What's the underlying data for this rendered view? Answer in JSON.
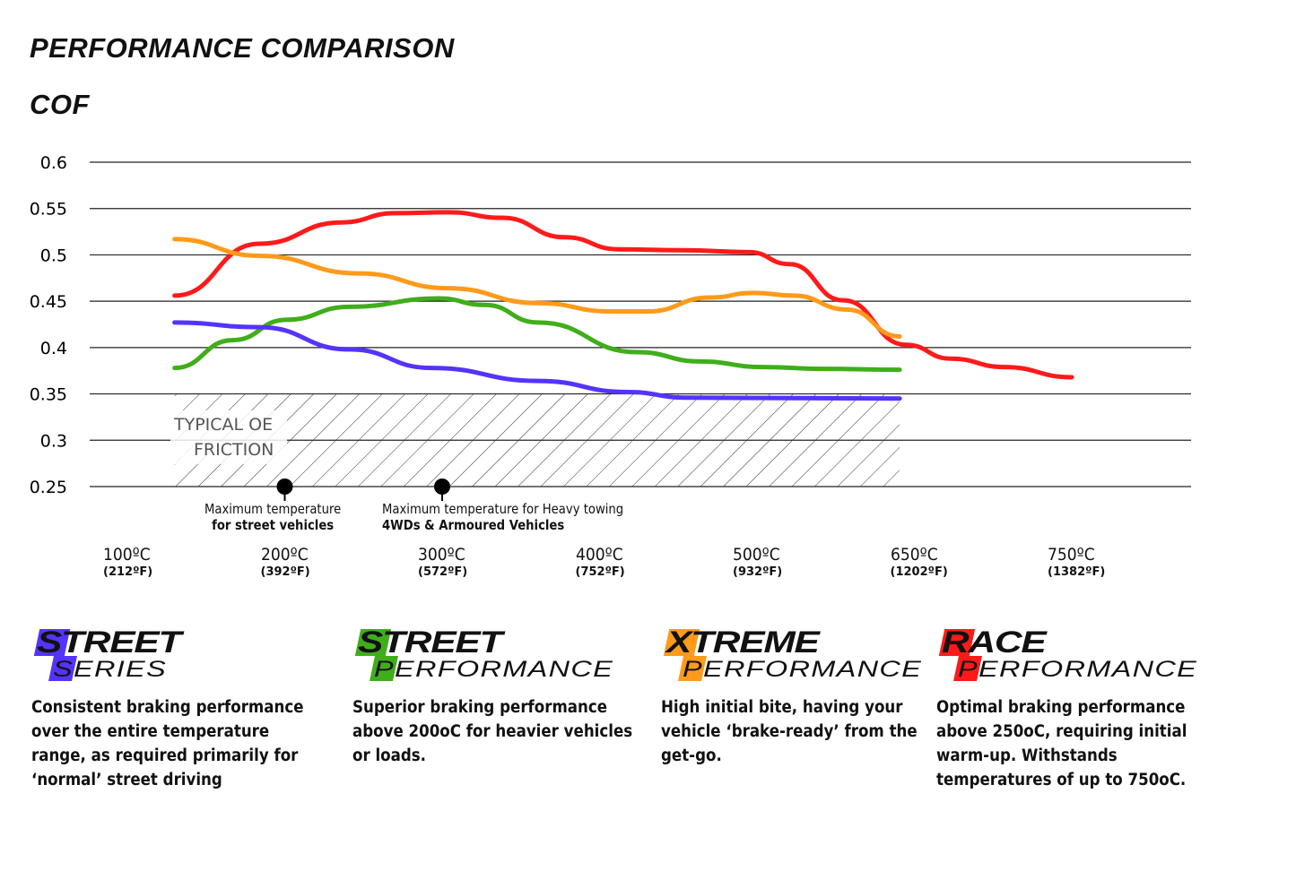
{
  "header": {
    "title": "PERFORMANCE COMPARISON",
    "subtitle": "COF"
  },
  "chart_data": {
    "type": "line",
    "ylabel": "COF",
    "ylim": [
      0.25,
      0.6
    ],
    "yticks": [
      "0.6",
      "0.55",
      "0.5",
      "0.45",
      "0.4",
      "0.35",
      "0.3",
      "0.25"
    ],
    "grid": true,
    "xticks": [
      {
        "c": "100ºC",
        "f": "(212ºF)",
        "t": 100
      },
      {
        "c": "200ºC",
        "f": "(392ºF)",
        "t": 200
      },
      {
        "c": "300ºC",
        "f": "(572ºF)",
        "t": 300
      },
      {
        "c": "400ºC",
        "f": "(752ºF)",
        "t": 400
      },
      {
        "c": "500ºC",
        "f": "(932ºF)",
        "t": 500
      },
      {
        "c": "650ºC",
        "f": "(1202ºF)",
        "t": 650
      },
      {
        "c": "750ºC",
        "f": "(1382ºF)",
        "t": 750
      }
    ],
    "series": [
      {
        "color": "#ff1a1a",
        "points": [
          [
            130,
            0.456
          ],
          [
            184,
            0.512
          ],
          [
            236,
            0.535
          ],
          [
            270,
            0.545
          ],
          [
            304,
            0.546
          ],
          [
            338,
            0.54
          ],
          [
            378,
            0.519
          ],
          [
            412,
            0.506
          ],
          [
            452,
            0.505
          ],
          [
            495,
            0.503
          ],
          [
            531,
            0.49
          ],
          [
            582,
            0.451
          ],
          [
            642,
            0.403
          ],
          [
            673,
            0.388
          ],
          [
            707,
            0.379
          ],
          [
            750,
            0.368
          ]
        ]
      },
      {
        "color": "#ff9a1a",
        "points": [
          [
            130,
            0.517
          ],
          [
            184,
            0.499
          ],
          [
            247,
            0.48
          ],
          [
            304,
            0.464
          ],
          [
            361,
            0.448
          ],
          [
            407,
            0.439
          ],
          [
            431,
            0.439
          ],
          [
            470,
            0.454
          ],
          [
            498,
            0.459
          ],
          [
            535,
            0.456
          ],
          [
            586,
            0.441
          ],
          [
            636,
            0.412
          ]
        ]
      },
      {
        "color": "#3fae1a",
        "points": [
          [
            130,
            0.378
          ],
          [
            167,
            0.408
          ],
          [
            201,
            0.43
          ],
          [
            241,
            0.444
          ],
          [
            298,
            0.453
          ],
          [
            327,
            0.446
          ],
          [
            361,
            0.427
          ],
          [
            424,
            0.395
          ],
          [
            464,
            0.385
          ],
          [
            505,
            0.379
          ],
          [
            565,
            0.377
          ],
          [
            636,
            0.376
          ]
        ]
      },
      {
        "color": "#5533ff",
        "points": [
          [
            130,
            0.427
          ],
          [
            184,
            0.422
          ],
          [
            241,
            0.398
          ],
          [
            293,
            0.378
          ],
          [
            361,
            0.364
          ],
          [
            418,
            0.352
          ],
          [
            455,
            0.346
          ],
          [
            636,
            0.345
          ]
        ]
      }
    ],
    "shaded_region": {
      "label_line1": "TYPICAL OE",
      "label_line2": "FRICTION",
      "x": [
        130,
        636
      ],
      "y": [
        0.25,
        0.35
      ]
    },
    "annotations": [
      {
        "t": 200,
        "line1": "Maximum temperature",
        "line2": "for street vehicles"
      },
      {
        "t": 300,
        "line1": "Maximum temperature for Heavy towing",
        "line2": "4WDs & Armoured Vehicles"
      }
    ]
  },
  "products": [
    {
      "l1": "STREET",
      "l2": "SERIES",
      "color": "#5533ff",
      "desc": "Consistent braking performance over the entire temperature range, as required primarily for ‘normal’ street driving"
    },
    {
      "l1": "STREET",
      "l2": "PERFORMANCE",
      "color": "#3fae1a",
      "desc": "Superior braking performance above 200oC for heavier vehicles or loads."
    },
    {
      "l1": "XTREME",
      "l2": "PERFORMANCE",
      "color": "#ff9a1a",
      "desc": "High initial bite, having your vehicle ‘brake-ready’ from the get-go."
    },
    {
      "l1": "RACE",
      "l2": "PERFORMANCE",
      "color": "#ff1a1a",
      "desc": "Optimal braking performance above 250oC, requiring initial warm-up. Withstands temperatures of up to 750oC."
    }
  ]
}
